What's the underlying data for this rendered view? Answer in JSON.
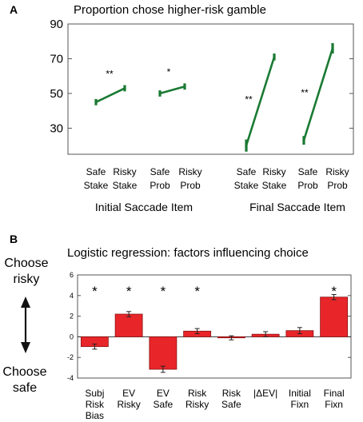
{
  "chart_data": [
    {
      "type": "line",
      "panel": "A",
      "title": "Proportion chose higher-risk gamble",
      "ylim": [
        15,
        90
      ],
      "yticks": [
        30,
        50,
        70,
        90
      ],
      "colors": {
        "line": "#1a7a33"
      },
      "series": [
        {
          "labels": [
            "Safe\nStake",
            "Risky\nStake"
          ],
          "values": [
            45,
            53
          ],
          "errors": [
            1.8,
            1.8
          ],
          "annotation": "**"
        },
        {
          "labels": [
            "Safe\nProb",
            "Risky\nProb"
          ],
          "values": [
            50,
            54
          ],
          "errors": [
            1.8,
            1.8
          ],
          "annotation": "*"
        },
        {
          "labels": [
            "Safe\nStake",
            "Risky\nStake"
          ],
          "values": [
            20,
            71
          ],
          "errors": [
            3.5,
            2.0
          ],
          "annotation": "**"
        },
        {
          "labels": [
            "Safe\nProb",
            "Risky\nProb"
          ],
          "values": [
            23,
            76
          ],
          "errors": [
            2.5,
            3.0
          ],
          "annotation": "**"
        }
      ],
      "group_labels": [
        "Initial Saccade Item",
        "Final Saccade Item"
      ]
    },
    {
      "type": "bar",
      "panel": "B",
      "title": "Logistic regression: factors influencing choice",
      "ylim": [
        -4,
        6
      ],
      "yticks": [
        -4,
        -2,
        0,
        2,
        4,
        6
      ],
      "colors": {
        "bar": "#e8262a",
        "edge": "#8a1010"
      },
      "categories": [
        "Subj\nRisk\nBias",
        "EV\nRisky",
        "EV\nSafe",
        "Risk\nRisky",
        "Risk\nSafe",
        "|ΔEV|",
        "Initial\nFixn",
        "Final\nFixn"
      ],
      "values": [
        -0.95,
        2.2,
        -3.15,
        0.55,
        -0.1,
        0.25,
        0.6,
        3.85
      ],
      "errors": [
        0.25,
        0.25,
        0.3,
        0.25,
        0.2,
        0.25,
        0.3,
        0.25
      ],
      "significant": [
        true,
        true,
        true,
        true,
        false,
        false,
        false,
        true
      ],
      "star_label": "*",
      "side_labels": {
        "top": "Choose\nrisky",
        "bottom": "Choose\nsafe"
      }
    }
  ]
}
